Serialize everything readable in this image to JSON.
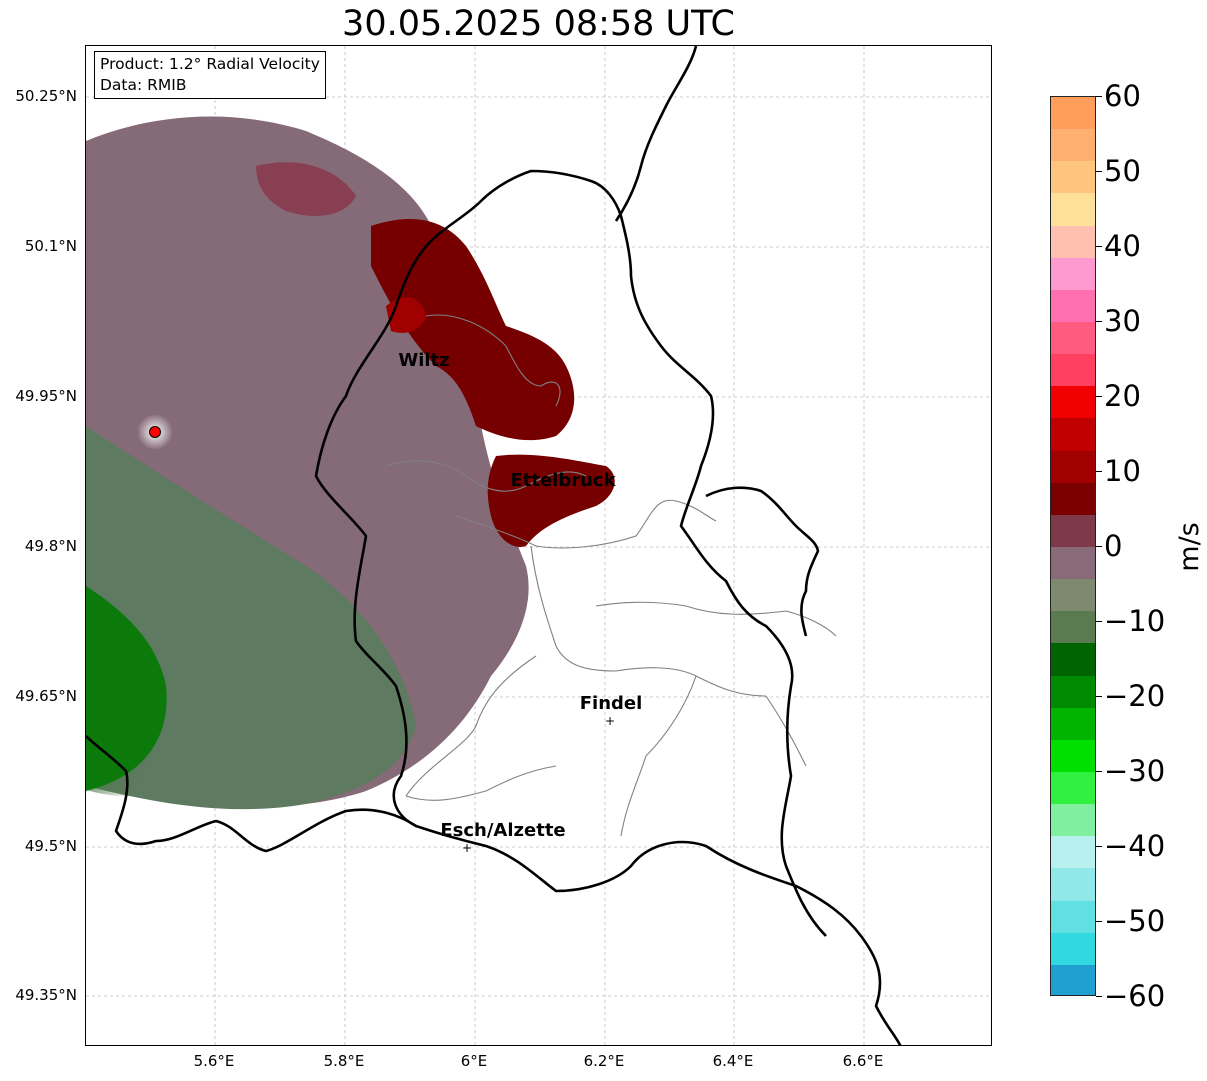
{
  "title": "30.05.2025 08:58 UTC",
  "info": {
    "product": "Product: 1.2° Radial Velocity",
    "data": "Data: RMIB"
  },
  "lat_labels": [
    "50.25°N",
    "50.1°N",
    "49.95°N",
    "49.8°N",
    "49.65°N",
    "49.5°N",
    "49.35°N"
  ],
  "lon_labels": [
    "5.6°E",
    "5.8°E",
    "6°E",
    "6.2°E",
    "6.4°E",
    "6.6°E"
  ],
  "cities": {
    "wiltz": "Wiltz",
    "ettelbruck": "Ettelbruck",
    "findel": "Findel",
    "esch": "Esch/Alzette"
  },
  "markers": {
    "findel_symbol": "+",
    "esch_symbol": "+"
  },
  "colorbar": {
    "unit": "m/s",
    "ticks": [
      "60",
      "50",
      "40",
      "30",
      "20",
      "10",
      "0",
      "−10",
      "−20",
      "−30",
      "−40",
      "−50",
      "−60"
    ],
    "range": [
      -60,
      60
    ],
    "colors": [
      "#ff9e5a",
      "#ffb070",
      "#ffc47e",
      "#ffe09a",
      "#ffc0b0",
      "#ff9ad0",
      "#ff70b0",
      "#ff5a80",
      "#ff4060",
      "#f00000",
      "#c00000",
      "#a00000",
      "#7a0000",
      "#7e3a48",
      "#886a78",
      "#7d8a70",
      "#5a7a50",
      "#006400",
      "#008a00",
      "#00b400",
      "#00e000",
      "#30f040",
      "#80f0a0",
      "#b8f0f0",
      "#90e8e8",
      "#60e0e0",
      "#30d8e0",
      "#20a0d0"
    ]
  },
  "radar_site": {
    "color": "#ff0000"
  }
}
